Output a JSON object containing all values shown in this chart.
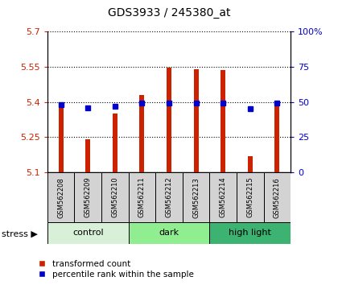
{
  "title": "GDS3933 / 245380_at",
  "samples": [
    "GSM562208",
    "GSM562209",
    "GSM562210",
    "GSM562211",
    "GSM562212",
    "GSM562213",
    "GSM562214",
    "GSM562215",
    "GSM562216"
  ],
  "red_values": [
    5.39,
    5.24,
    5.35,
    5.43,
    5.545,
    5.54,
    5.535,
    5.17,
    5.39
  ],
  "blue_values": [
    48,
    46,
    47,
    49,
    49,
    49,
    49,
    45,
    49
  ],
  "ylim_left": [
    5.1,
    5.7
  ],
  "ylim_right": [
    0,
    100
  ],
  "yticks_left": [
    5.1,
    5.25,
    5.4,
    5.55,
    5.7
  ],
  "yticks_right": [
    0,
    25,
    50,
    75,
    100
  ],
  "ytick_labels_left": [
    "5.1",
    "5.25",
    "5.4",
    "5.55",
    "5.7"
  ],
  "ytick_labels_right": [
    "0",
    "25",
    "50",
    "75",
    "100%"
  ],
  "groups": [
    {
      "label": "control",
      "start": 0,
      "end": 3,
      "color": "#d8f0d8"
    },
    {
      "label": "dark",
      "start": 3,
      "end": 6,
      "color": "#90ee90"
    },
    {
      "label": "high light",
      "start": 6,
      "end": 9,
      "color": "#3cb371"
    }
  ],
  "stress_label": "stress",
  "bar_bottom": 5.1,
  "bar_width": 0.18,
  "red_color": "#cc2200",
  "blue_color": "#0000cc",
  "sample_bg_color": "#d3d3d3",
  "legend_red_label": "transformed count",
  "legend_blue_label": "percentile rank within the sample",
  "title_fontsize": 10,
  "tick_fontsize": 8,
  "sample_fontsize": 6,
  "group_fontsize": 8
}
